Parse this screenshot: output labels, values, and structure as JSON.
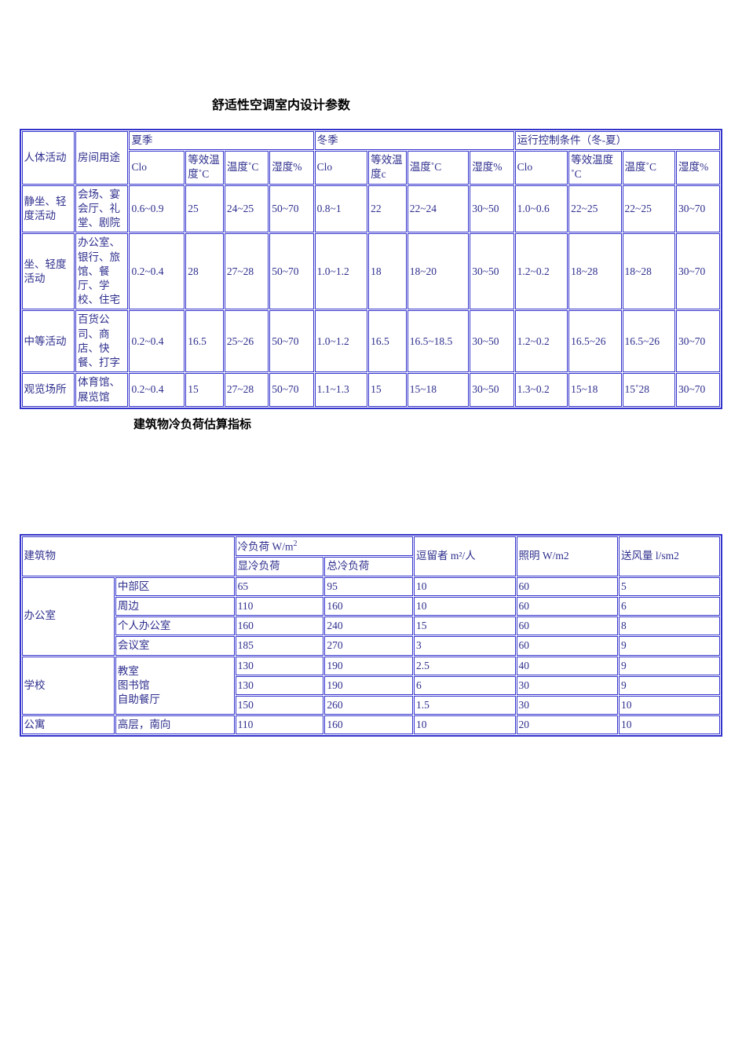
{
  "title1": "舒适性空调室内设计参数",
  "title2": "建筑物冷负荷估算指标",
  "t1_headers": {
    "activity": "人体活动",
    "usage": "房间用途",
    "summer": "夏季",
    "winter": "冬季",
    "control": "运行控制条件（冬-夏）",
    "clo": "Clo",
    "eff_temp": "等效温度˚C",
    "eff_temp_c": "等效温度c",
    "temp": "温度˚C",
    "hum": "湿度%"
  },
  "t1_rows": [
    {
      "activity": "静坐、轻度活动",
      "usage": "会场、宴会厅、礼堂、剧院",
      "s_clo": "0.6~0.9",
      "s_eff": "25",
      "s_t": "24~25",
      "s_h": "50~70",
      "w_clo": "0.8~1",
      "w_eff": "22",
      "w_t": "22~24",
      "w_h": "30~50",
      "c_clo": "1.0~0.6",
      "c_eff": "22~25",
      "c_t": "22~25",
      "c_h": "30~70"
    },
    {
      "activity": "坐、轻度活动",
      "usage": "办公室、银行、旅馆、餐厅、学校、住宅",
      "s_clo": "0.2~0.4",
      "s_eff": "28",
      "s_t": "27~28",
      "s_h": "50~70",
      "w_clo": "1.0~1.2",
      "w_eff": "18",
      "w_t": "18~20",
      "w_h": "30~50",
      "c_clo": "1.2~0.2",
      "c_eff": "18~28",
      "c_t": "18~28",
      "c_h": "30~70"
    },
    {
      "activity": "中等活动",
      "usage": "百货公司、商店、快餐、打字",
      "s_clo": "0.2~0.4",
      "s_eff": "16.5",
      "s_t": "25~26",
      "s_h": "50~70",
      "w_clo": "1.0~1.2",
      "w_eff": "16.5",
      "w_t": "16.5~18.5",
      "w_h": "30~50",
      "c_clo": "1.2~0.2",
      "c_eff": "16.5~26",
      "c_t": "16.5~26",
      "c_h": "30~70"
    },
    {
      "activity": "观览场所",
      "usage": "体育馆、展览馆",
      "s_clo": "0.2~0.4",
      "s_eff": "15",
      "s_t": "27~28",
      "s_h": "50~70",
      "w_clo": "1.1~1.3",
      "w_eff": "15",
      "w_t": "15~18",
      "w_h": "30~50",
      "c_clo": "1.3~0.2",
      "c_eff": "15~18",
      "c_t": "15˚28",
      "c_h": "30~70"
    }
  ],
  "t2_headers": {
    "building": "建筑物",
    "cold_load": "冷负荷 W/m",
    "sensible": "显冷负荷",
    "total": "总冷负荷",
    "occupant": "逗留者 m²/人",
    "lighting": "照明 W/m2",
    "airflow": "送风量 l/sm2"
  },
  "t2_groups": [
    {
      "name": "办公室",
      "subs": [
        "中部区",
        "周边",
        "个人办公室",
        "会议室"
      ],
      "rows": [
        {
          "s": "65",
          "t": "95",
          "o": "10",
          "l": "60",
          "a": "5"
        },
        {
          "s": "110",
          "t": "160",
          "o": "10",
          "l": "60",
          "a": "6"
        },
        {
          "s": "160",
          "t": "240",
          "o": "15",
          "l": "60",
          "a": "8"
        },
        {
          "s": "185",
          "t": "270",
          "o": "3",
          "l": "60",
          "a": "9"
        }
      ]
    },
    {
      "name": "学校",
      "sub_label": "教室\n图书馆\n自助餐厅",
      "rows": [
        {
          "s": "130",
          "t": "190",
          "o": "2.5",
          "l": "40",
          "a": "9"
        },
        {
          "s": "130",
          "t": "190",
          "o": "6",
          "l": "30",
          "a": "9"
        },
        {
          "s": "150",
          "t": "260",
          "o": "1.5",
          "l": "30",
          "a": "10"
        }
      ]
    },
    {
      "name": "公寓",
      "subs": [
        "高层，南向"
      ],
      "rows": [
        {
          "s": "110",
          "t": "160",
          "o": "10",
          "l": "20",
          "a": "10"
        }
      ]
    }
  ],
  "colors": {
    "border": "#3333cc",
    "text": "#2e2e8e",
    "bg": "#ffffff"
  }
}
